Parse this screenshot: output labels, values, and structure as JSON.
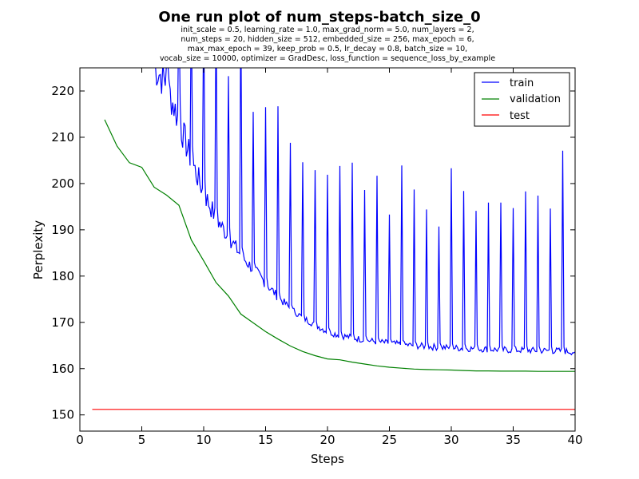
{
  "chart_data": {
    "type": "line",
    "title": "One run plot of num_steps-batch_size_0",
    "subtitle_lines": [
      "init_scale = 0.5, learning_rate = 1.0, max_grad_norm = 5.0, num_layers = 2,",
      "num_steps = 20, hidden_size = 512, embedded_size = 256, max_epoch = 6,",
      "max_max_epoch = 39, keep_prob = 0.5, lr_decay = 0.8, batch_size = 10,",
      "vocab_size = 10000, optimizer = GradDesc, loss_function = sequence_loss_by_example"
    ],
    "xlabel": "Steps",
    "ylabel": "Perplexity",
    "xlim": [
      0,
      40
    ],
    "ylim": [
      146.5,
      225
    ],
    "xticks": [
      0,
      5,
      10,
      15,
      20,
      25,
      30,
      35,
      40
    ],
    "yticks": [
      150,
      160,
      170,
      180,
      190,
      200,
      210,
      220
    ],
    "grid": false,
    "legend_position": "top-right",
    "series": [
      {
        "name": "train",
        "color": "#0000ff",
        "style": "noisy per-epoch trace with a spike at the start of each epoch",
        "epoch_start": 6,
        "epoch_end": 40,
        "spikes": [
          [
            7,
            226
          ],
          [
            8,
            240
          ],
          [
            9,
            240
          ],
          [
            10,
            240
          ],
          [
            11,
            240
          ],
          [
            12,
            223.2
          ],
          [
            13,
            240
          ],
          [
            14,
            215.5
          ],
          [
            15,
            216.5
          ],
          [
            16,
            216.7
          ],
          [
            17,
            208.8
          ],
          [
            18,
            204.6
          ],
          [
            19,
            202.9
          ],
          [
            20,
            201.9
          ],
          [
            21,
            203.8
          ],
          [
            22,
            204.5
          ],
          [
            23,
            198.6
          ],
          [
            24,
            201.7
          ],
          [
            25,
            193.3
          ],
          [
            26,
            203.9
          ],
          [
            27,
            198.7
          ],
          [
            28,
            194.4
          ],
          [
            29,
            190.7
          ],
          [
            30,
            203.3
          ],
          [
            31,
            198.4
          ],
          [
            32,
            194.1
          ],
          [
            33,
            195.9
          ],
          [
            34,
            195.9
          ],
          [
            35,
            194.7
          ],
          [
            36,
            198.3
          ],
          [
            37,
            197.4
          ],
          [
            38,
            194.6
          ],
          [
            39,
            207.1
          ]
        ],
        "epoch_levels": [
          [
            6,
            225.5
          ],
          [
            7,
            221.5
          ],
          [
            8,
            213.5
          ],
          [
            9,
            205.0
          ],
          [
            10,
            198.0
          ],
          [
            11,
            192.5
          ],
          [
            12,
            188.5
          ],
          [
            13,
            184.5
          ],
          [
            14,
            181.5
          ],
          [
            15,
            178.5
          ],
          [
            16,
            175.5
          ],
          [
            17,
            173.0
          ],
          [
            18,
            171.0
          ],
          [
            19,
            169.5
          ],
          [
            20,
            168.0
          ],
          [
            21,
            167.2
          ],
          [
            22,
            166.7
          ],
          [
            23,
            166.2
          ],
          [
            24,
            165.8
          ],
          [
            25,
            165.5
          ],
          [
            26,
            165.2
          ],
          [
            27,
            165.0
          ],
          [
            28,
            164.8
          ],
          [
            29,
            164.6
          ],
          [
            30,
            164.5
          ],
          [
            31,
            164.4
          ],
          [
            32,
            164.3
          ],
          [
            33,
            164.2
          ],
          [
            34,
            164.1
          ],
          [
            35,
            164.0
          ],
          [
            36,
            164.0
          ],
          [
            37,
            163.9
          ],
          [
            38,
            163.9
          ],
          [
            39,
            163.8
          ],
          [
            40,
            163.6
          ]
        ]
      },
      {
        "name": "validation",
        "color": "#008000",
        "x": [
          2,
          3,
          4,
          5,
          6,
          7,
          8,
          9,
          10,
          11,
          12,
          13,
          14,
          15,
          16,
          17,
          18,
          19,
          20,
          21,
          22,
          23,
          24,
          25,
          26,
          27,
          28,
          29,
          30,
          31,
          32,
          33,
          34,
          35,
          36,
          37,
          38,
          39,
          40
        ],
        "y": [
          213.8,
          208.1,
          204.5,
          203.5,
          199.2,
          197.5,
          195.3,
          187.8,
          183.3,
          178.6,
          175.7,
          171.8,
          169.9,
          168.0,
          166.4,
          164.9,
          163.7,
          162.8,
          162.1,
          161.9,
          161.4,
          161.0,
          160.6,
          160.3,
          160.1,
          159.9,
          159.8,
          159.75,
          159.7,
          159.6,
          159.5,
          159.5,
          159.45,
          159.45,
          159.45,
          159.4,
          159.4,
          159.4,
          159.4
        ]
      },
      {
        "name": "test",
        "color": "#ff0000",
        "x": [
          1,
          40
        ],
        "y": [
          151.2,
          151.2
        ]
      }
    ]
  }
}
